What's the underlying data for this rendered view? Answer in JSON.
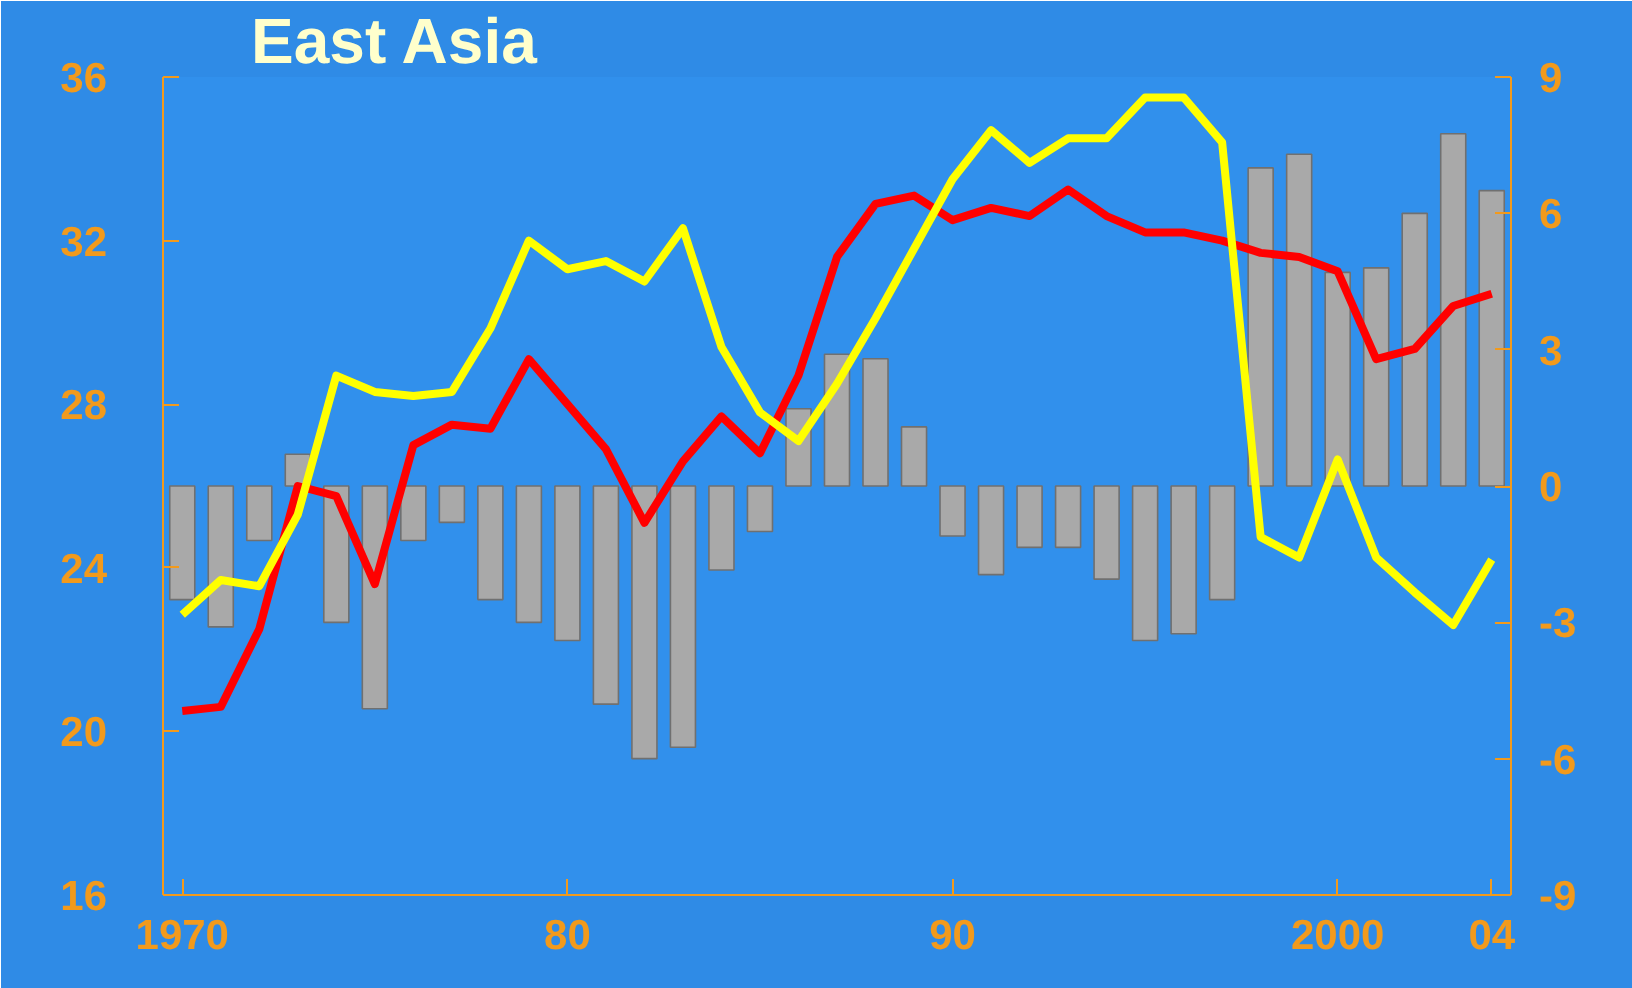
{
  "chart_data": {
    "type": "line",
    "title": "East Asia",
    "x": [
      1970,
      1971,
      1972,
      1973,
      1974,
      1975,
      1976,
      1977,
      1978,
      1979,
      1980,
      1981,
      1982,
      1983,
      1984,
      1985,
      1986,
      1987,
      1988,
      1989,
      1990,
      1991,
      1992,
      1993,
      1994,
      1995,
      1996,
      1997,
      1998,
      1999,
      2000,
      2001,
      2002,
      2003,
      2004
    ],
    "xlim": [
      1969.5,
      2004.5
    ],
    "xticks": [
      {
        "value": 1970,
        "label": "1970"
      },
      {
        "value": 1980,
        "label": "80"
      },
      {
        "value": 1990,
        "label": "90"
      },
      {
        "value": 2000,
        "label": "2000"
      },
      {
        "value": 2004,
        "label": "04"
      }
    ],
    "ylim": [
      16,
      36
    ],
    "yticks": [
      16,
      20,
      24,
      28,
      32,
      36
    ],
    "y2lim": [
      -9,
      9
    ],
    "y2ticks": [
      -9,
      -6,
      -3,
      0,
      3,
      6,
      9
    ],
    "grid": false,
    "line_style": "solid",
    "marker": "none",
    "series": [
      {
        "type": "bar",
        "axis": "y2",
        "color": "#a9a9a9",
        "values": [
          -2.5,
          -3.1,
          -1.2,
          0.7,
          -3.0,
          -4.9,
          -1.2,
          -0.8,
          -2.5,
          -3.0,
          -3.4,
          -4.8,
          -6.0,
          -5.75,
          -1.85,
          -1.0,
          1.7,
          2.9,
          2.8,
          1.3,
          -1.1,
          -1.95,
          -1.35,
          -1.35,
          -2.05,
          -3.4,
          -3.25,
          -2.5,
          7.0,
          7.3,
          4.7,
          4.8,
          6.0,
          7.75,
          6.5
        ]
      },
      {
        "color": "#ff0000",
        "values": [
          20.5,
          20.6,
          22.5,
          26.0,
          25.75,
          23.6,
          27.0,
          27.5,
          27.4,
          29.1,
          28.0,
          26.9,
          25.1,
          26.6,
          27.7,
          26.8,
          28.7,
          31.6,
          32.9,
          33.1,
          32.5,
          32.8,
          32.6,
          33.25,
          32.6,
          32.2,
          32.2,
          32.0,
          31.7,
          31.6,
          31.25,
          29.1,
          29.35,
          30.4,
          30.7
        ]
      },
      {
        "color": "#ffff00",
        "values": [
          22.85,
          23.7,
          23.55,
          25.3,
          28.7,
          28.3,
          28.2,
          28.3,
          29.85,
          32.0,
          31.3,
          31.5,
          31.0,
          32.3,
          29.4,
          27.8,
          27.1,
          28.5,
          30.1,
          31.8,
          33.5,
          34.7,
          33.9,
          34.5,
          34.5,
          35.5,
          35.5,
          34.4,
          24.75,
          24.25,
          26.65,
          24.25,
          23.4,
          22.6,
          24.2
        ]
      }
    ]
  }
}
